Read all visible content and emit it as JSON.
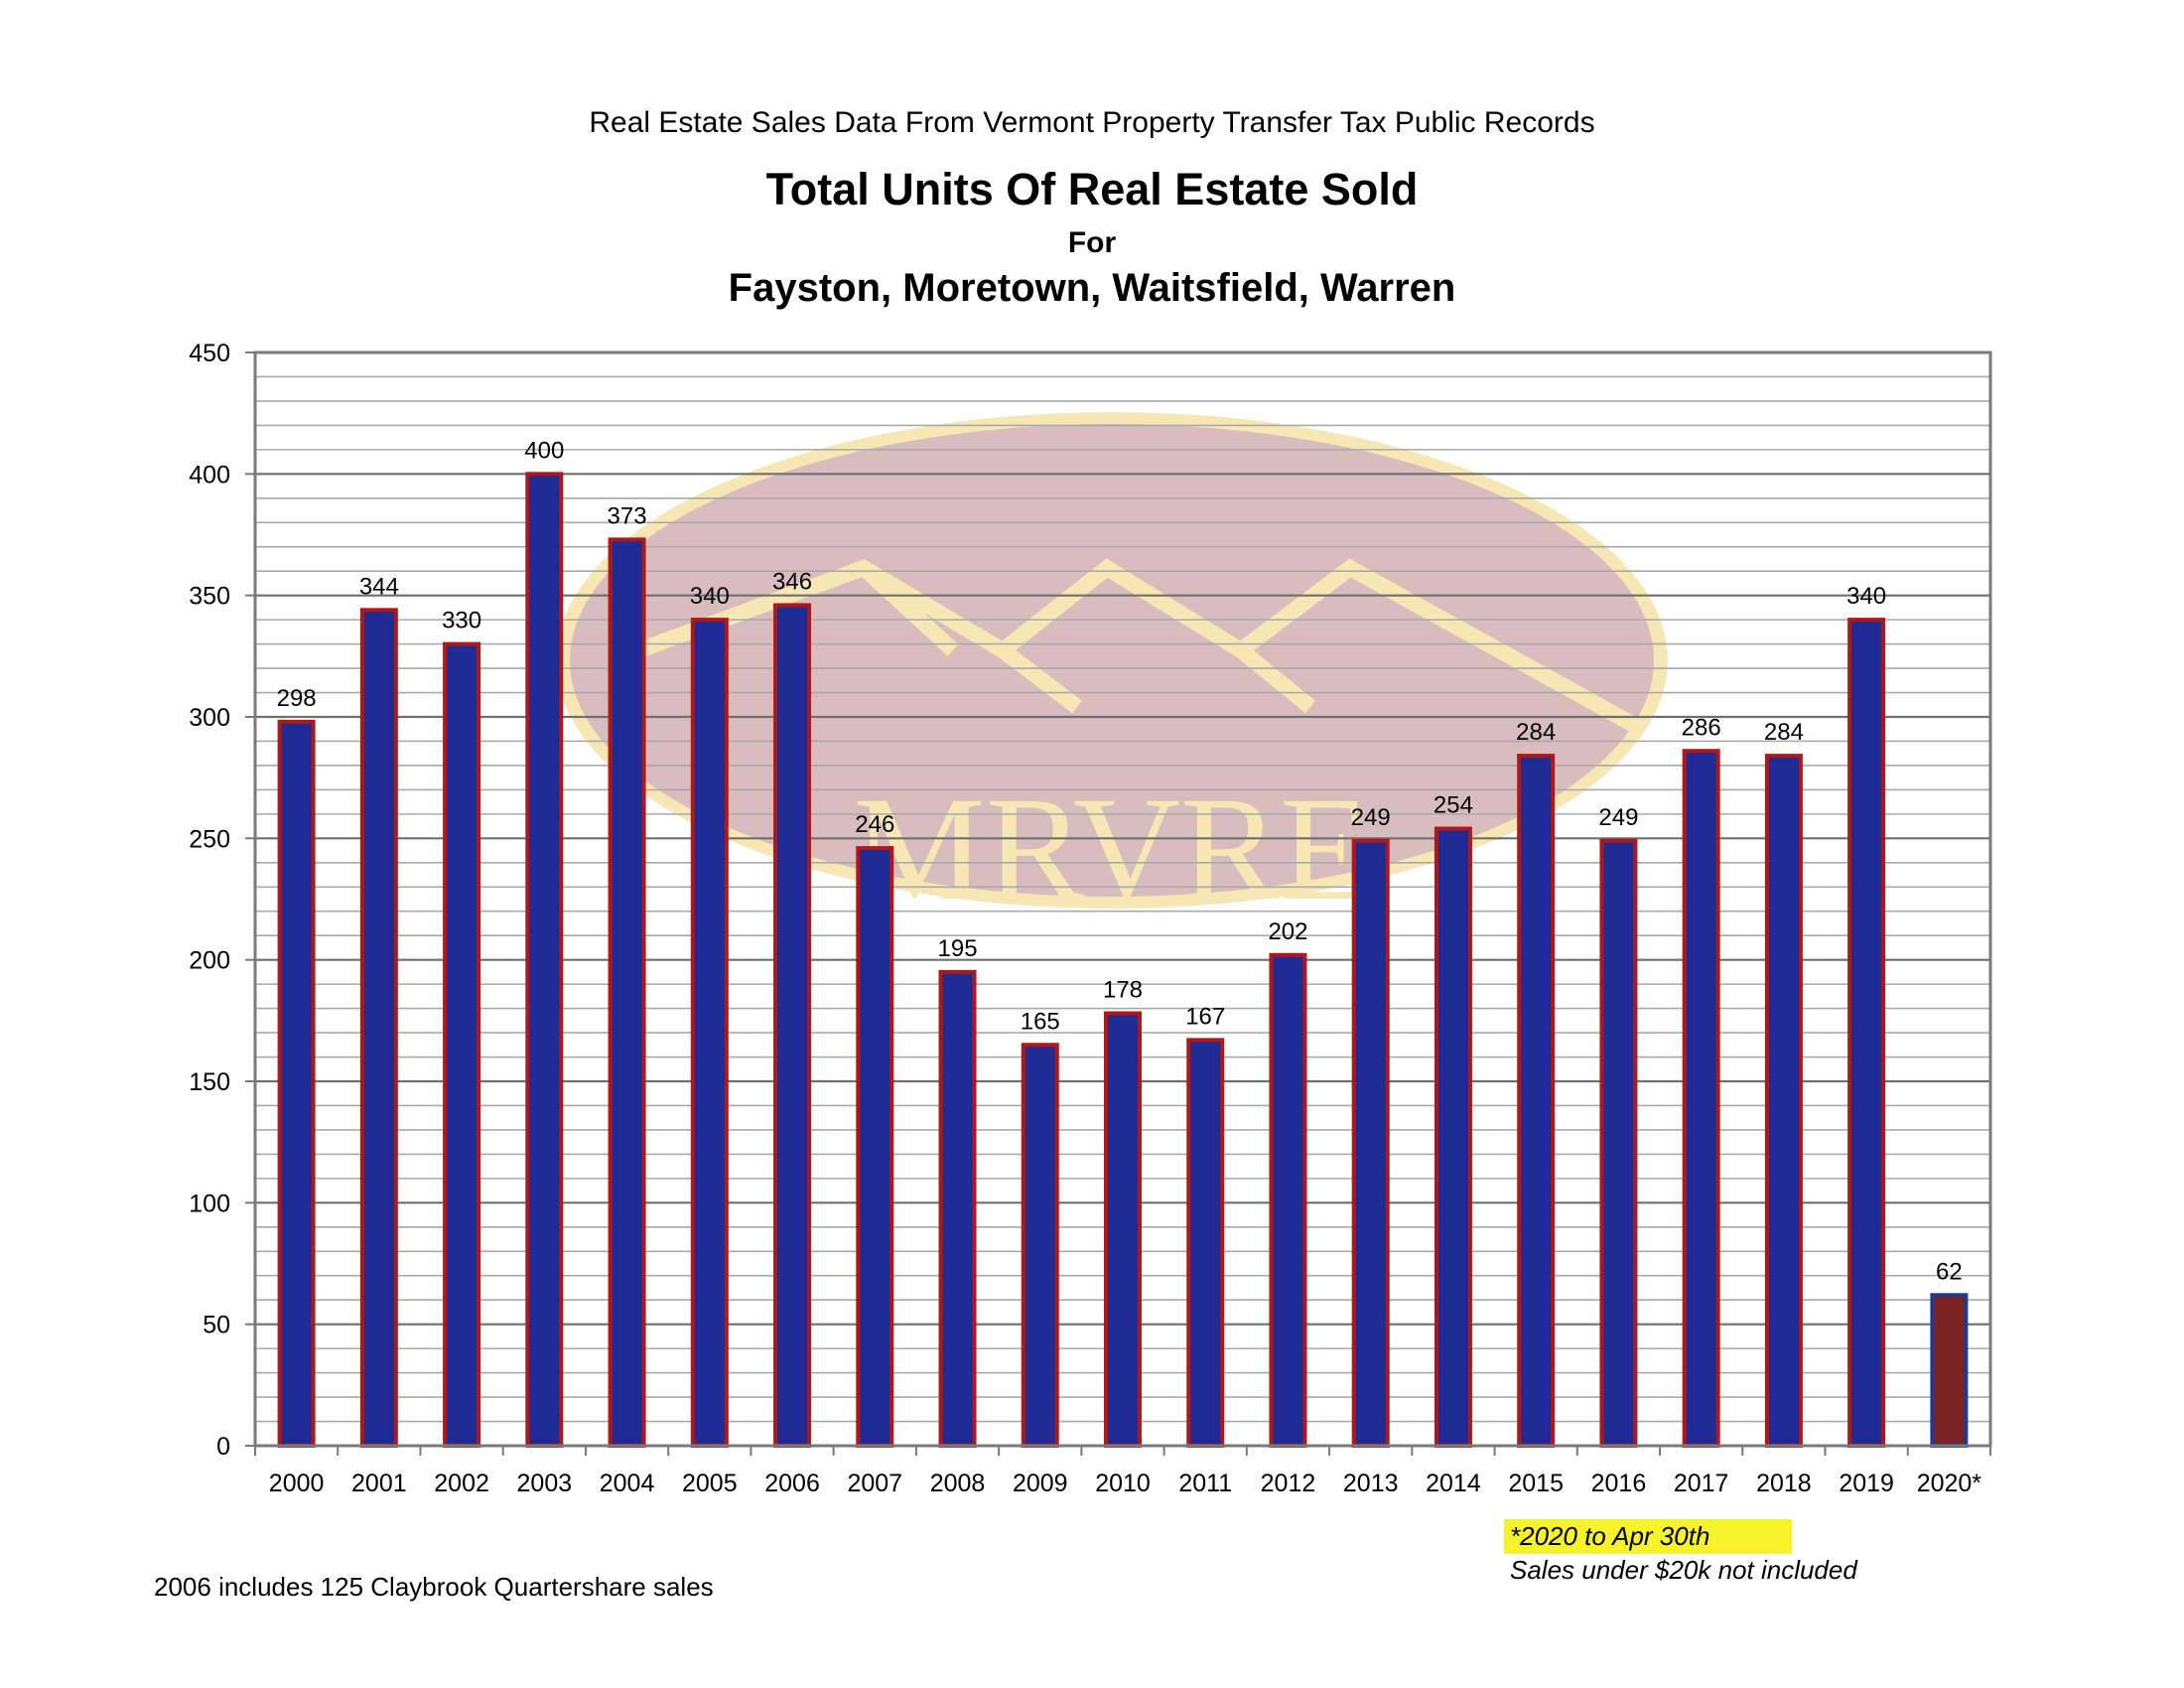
{
  "header": {
    "source": "Real Estate Sales Data From Vermont Property Transfer Tax Public Records",
    "title": "Total Units Of Real Estate Sold",
    "for_label": "For",
    "towns": "Fayston, Moretown, Waitsfield, Warren"
  },
  "watermark": {
    "text": "MRVRE"
  },
  "notes": {
    "left": "2006 includes 125 Claybrook Quartershare sales",
    "highlight": "*2020 to Apr 30th",
    "right": "Sales under $20k not included"
  },
  "colors": {
    "bar_fill": "#1f2a94",
    "bar_edge": "#b01818",
    "partial_fill": "#7b2222",
    "partial_edge": "#1f3a8a",
    "highlight": "#f7f32a",
    "watermark_oval": "#d8bcbe",
    "watermark_rim": "#f6e7b4"
  },
  "chart_data": {
    "type": "bar",
    "categories": [
      "2000",
      "2001",
      "2002",
      "2003",
      "2004",
      "2005",
      "2006",
      "2007",
      "2008",
      "2009",
      "2010",
      "2011",
      "2012",
      "2013",
      "2014",
      "2015",
      "2016",
      "2017",
      "2018",
      "2019",
      "2020*"
    ],
    "values": [
      298,
      344,
      330,
      400,
      373,
      340,
      346,
      246,
      195,
      165,
      178,
      167,
      202,
      249,
      254,
      284,
      249,
      286,
      284,
      340,
      62
    ],
    "data_labels": [
      "298",
      "344",
      "330",
      "400",
      "373",
      "340",
      "346",
      "246",
      "195",
      "165",
      "178",
      "167",
      "202",
      "249",
      "254",
      "284",
      "249",
      "286",
      "284",
      "340",
      "62"
    ],
    "partial_category": "2020*",
    "title": "Total Units Of Real Estate Sold",
    "xlabel": "",
    "ylabel": "",
    "ylim": [
      0,
      450
    ],
    "y_ticks": [
      0,
      50,
      100,
      150,
      200,
      250,
      300,
      350,
      400,
      450
    ],
    "y_tick_labels": [
      "0",
      "50",
      "100",
      "150",
      "200",
      "250",
      "300",
      "350",
      "400",
      "450"
    ],
    "minor_grid_step": 10,
    "grid": true,
    "legend": "none"
  }
}
